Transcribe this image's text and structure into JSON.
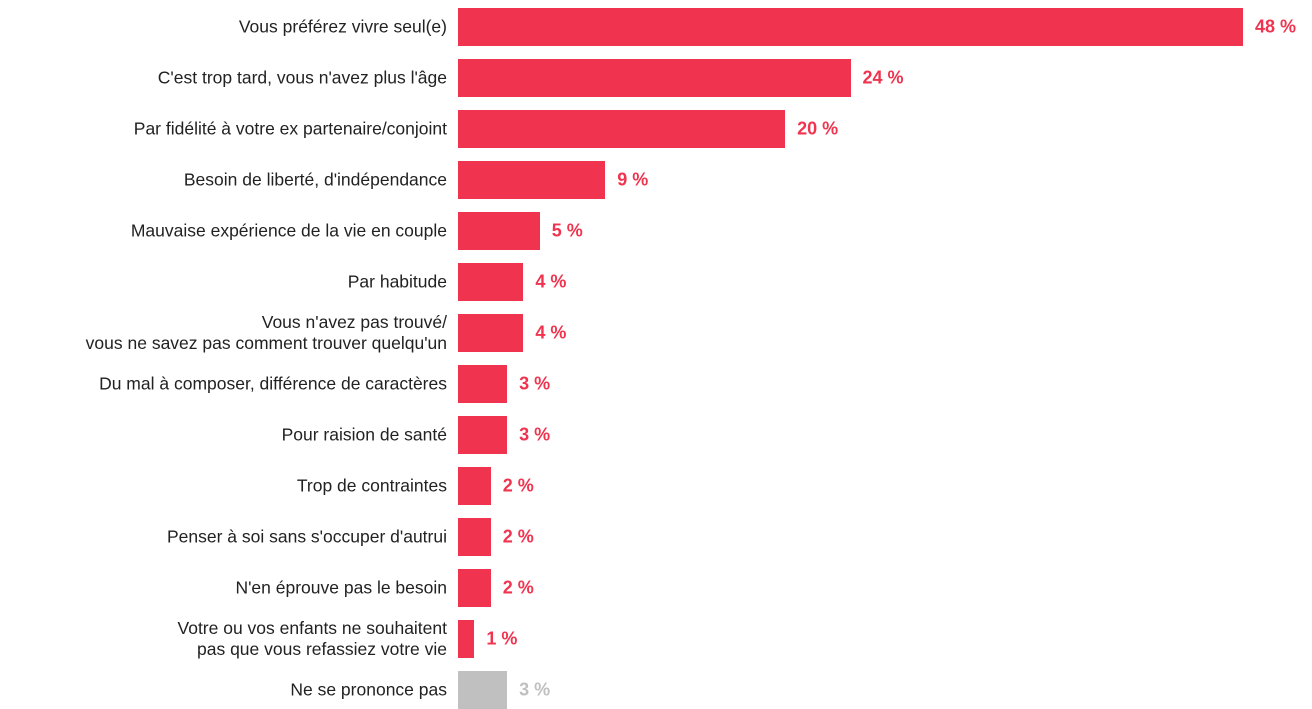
{
  "chart_data": {
    "type": "bar",
    "orientation": "horizontal",
    "categories": [
      "Vous préférez vivre seul(e)",
      "C'est trop tard, vous n'avez plus l'âge",
      "Par fidélité à votre ex partenaire/conjoint",
      "Besoin de liberté, d'indépendance",
      "Mauvaise expérience de la vie en couple",
      "Par habitude",
      "Vous n'avez pas trouvé/\nvous ne savez pas comment trouver quelqu'un",
      "Du mal à composer, différence de caractères",
      "Pour raision de santé",
      "Trop de contraintes",
      "Penser à soi sans s'occuper d'autrui",
      "N'en éprouve pas le besoin",
      "Votre ou vos enfants ne souhaitent\npas que vous refassiez votre vie",
      "Ne se prononce pas"
    ],
    "values": [
      48,
      24,
      20,
      9,
      5,
      4,
      4,
      3,
      3,
      2,
      2,
      2,
      1,
      3
    ],
    "value_labels": [
      "48 %",
      "24 %",
      "20 %",
      "9 %",
      "5 %",
      "4 %",
      "4 %",
      "3 %",
      "3 %",
      "2 %",
      "2 %",
      "2 %",
      "1 %",
      "3 %"
    ],
    "colors": [
      "#f0344f",
      "#f0344f",
      "#f0344f",
      "#f0344f",
      "#f0344f",
      "#f0344f",
      "#f0344f",
      "#f0344f",
      "#f0344f",
      "#f0344f",
      "#f0344f",
      "#f0344f",
      "#f0344f",
      "#c0c0c0"
    ]
  }
}
